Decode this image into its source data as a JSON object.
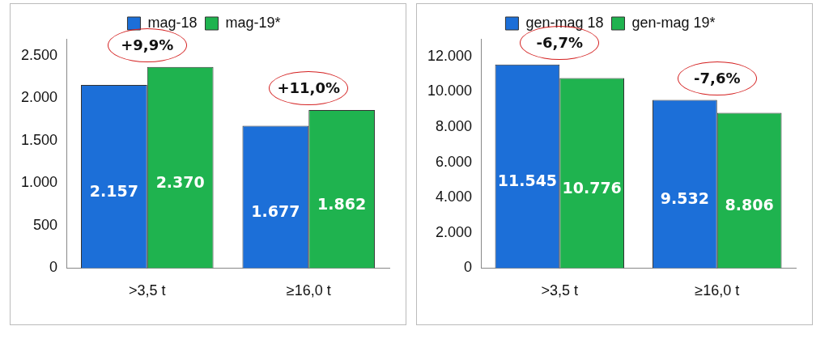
{
  "chart_data": [
    {
      "type": "bar",
      "categories": [
        ">3,5 t",
        "≥16,0 t"
      ],
      "series": [
        {
          "name": "mag-18",
          "color": "#1c6fd8",
          "values": [
            2157,
            1677
          ],
          "value_labels": [
            "2.157",
            "1.677"
          ]
        },
        {
          "name": "mag-19*",
          "color": "#1fb34f",
          "values": [
            2370,
            1862
          ],
          "value_labels": [
            "2.370",
            "1.862"
          ]
        }
      ],
      "ylim": [
        0,
        2700
      ],
      "yticks": [
        {
          "value": 0,
          "label": "0"
        },
        {
          "value": 500,
          "label": "500"
        },
        {
          "value": 1000,
          "label": "1.000"
        },
        {
          "value": 1500,
          "label": "1.500"
        },
        {
          "value": 2000,
          "label": "2.000"
        },
        {
          "value": 2500,
          "label": "2.500"
        }
      ],
      "grid": false,
      "legend": "top",
      "annotations": [
        "+9,9%",
        "+11,0%"
      ]
    },
    {
      "type": "bar",
      "categories": [
        ">3,5 t",
        "≥16,0 t"
      ],
      "series": [
        {
          "name": "gen-mag 18",
          "color": "#1c6fd8",
          "values": [
            11545,
            9532
          ],
          "value_labels": [
            "11.545",
            "9.532"
          ]
        },
        {
          "name": "gen-mag 19*",
          "color": "#1fb34f",
          "values": [
            10776,
            8806
          ],
          "value_labels": [
            "10.776",
            "8.806"
          ]
        }
      ],
      "ylim": [
        0,
        13000
      ],
      "yticks": [
        {
          "value": 0,
          "label": "0"
        },
        {
          "value": 2000,
          "label": "2.000"
        },
        {
          "value": 4000,
          "label": "4.000"
        },
        {
          "value": 6000,
          "label": "6.000"
        },
        {
          "value": 8000,
          "label": "8.000"
        },
        {
          "value": 10000,
          "label": "10.000"
        },
        {
          "value": 12000,
          "label": "12.000"
        }
      ],
      "grid": false,
      "legend": "top",
      "annotations": [
        "-6,7%",
        "-7,6%"
      ]
    }
  ]
}
